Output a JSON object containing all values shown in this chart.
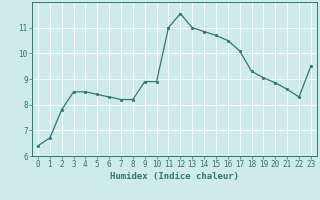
{
  "x": [
    0,
    1,
    2,
    3,
    4,
    5,
    6,
    7,
    8,
    9,
    10,
    11,
    12,
    13,
    14,
    15,
    16,
    17,
    18,
    19,
    20,
    21,
    22,
    23
  ],
  "y": [
    6.4,
    6.7,
    7.8,
    8.5,
    8.5,
    8.4,
    8.3,
    8.2,
    8.2,
    8.9,
    8.9,
    11.0,
    11.55,
    11.0,
    10.85,
    10.7,
    10.5,
    10.1,
    9.3,
    9.05,
    8.85,
    8.6,
    8.3,
    9.5
  ],
  "line_color": "#2d7a6e",
  "marker": "o",
  "marker_size": 2.0,
  "bg_color": "#ceeaea",
  "grid_color": "#ffffff",
  "xlabel": "Humidex (Indice chaleur)",
  "ylabel": "",
  "xlim": [
    -0.5,
    23.5
  ],
  "ylim": [
    6.0,
    12.0
  ],
  "yticks": [
    6,
    7,
    8,
    9,
    10,
    11
  ],
  "xticks": [
    0,
    1,
    2,
    3,
    4,
    5,
    6,
    7,
    8,
    9,
    10,
    11,
    12,
    13,
    14,
    15,
    16,
    17,
    18,
    19,
    20,
    21,
    22,
    23
  ],
  "tick_color": "#2d7a6e",
  "label_fontsize": 6.5,
  "tick_fontsize": 5.5,
  "spine_color": "#2d7a6e",
  "bottom_bar_color": "#2d7a6e"
}
